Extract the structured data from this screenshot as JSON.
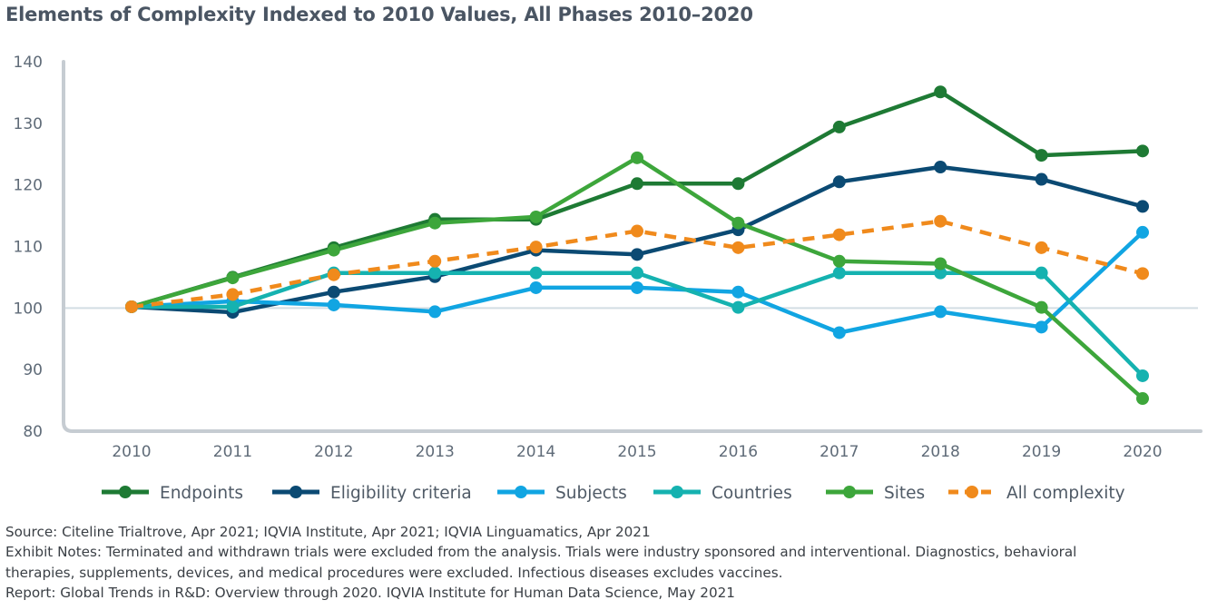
{
  "title": "Elements of Complexity Indexed to 2010 Values, All Phases 2010–2020",
  "footer": {
    "source": "Source: Citeline Trialtrove, Apr 2021; IQVIA Institute, Apr 2021; IQVIA Linguamatics, Apr 2021",
    "notes_line1": "Exhibit Notes: Terminated and withdrawn trials were excluded from the analysis. Trials were industry sponsored and interventional. Diagnostics, behavioral",
    "notes_line2": "therapies, supplements, devices, and medical procedures were excluded. Infectious diseases excludes vaccines.",
    "report": "Report: Global Trends in R&D: Overview through 2020. IQVIA Institute for Human Data Science, May 2021"
  },
  "chart_data": {
    "type": "line",
    "title": "Elements of Complexity Indexed to 2010 Values, All Phases 2010–2020",
    "xlabel": "",
    "ylabel": "",
    "x": [
      "2010",
      "2011",
      "2012",
      "2013",
      "2014",
      "2015",
      "2016",
      "2017",
      "2018",
      "2019",
      "2020"
    ],
    "ylim": [
      80,
      140
    ],
    "yticks": [
      80,
      90,
      100,
      110,
      120,
      130,
      140
    ],
    "reference_line": 100,
    "legend_position": "bottom",
    "series": [
      {
        "name": "Endpoints",
        "color": "#1e7a34",
        "dashed": false,
        "values": [
          100.2,
          105.0,
          109.8,
          114.4,
          114.4,
          120.2,
          120.2,
          129.4,
          135.1,
          124.8,
          125.5
        ]
      },
      {
        "name": "Eligibility criteria",
        "color": "#0b4a73",
        "dashed": false,
        "values": [
          100.2,
          99.3,
          102.6,
          105.1,
          109.4,
          108.7,
          112.7,
          120.5,
          122.9,
          120.9,
          116.5
        ]
      },
      {
        "name": "Subjects",
        "color": "#11a5e2",
        "dashed": false,
        "values": [
          100.2,
          101.1,
          100.5,
          99.4,
          103.3,
          103.3,
          102.6,
          96.0,
          99.4,
          96.9,
          112.3
        ]
      },
      {
        "name": "Countries",
        "color": "#15b2b0",
        "dashed": false,
        "values": [
          100.2,
          100.2,
          105.7,
          105.7,
          105.7,
          105.7,
          100.1,
          105.7,
          105.7,
          105.7,
          89.0
        ]
      },
      {
        "name": "Sites",
        "color": "#3da63b",
        "dashed": false,
        "values": [
          100.2,
          104.9,
          109.4,
          113.8,
          114.8,
          124.4,
          113.8,
          107.6,
          107.2,
          100.1,
          85.3
        ]
      },
      {
        "name": "All complexity",
        "color": "#f08a1c",
        "dashed": true,
        "values": [
          100.2,
          102.2,
          105.4,
          107.6,
          109.9,
          112.5,
          109.8,
          111.9,
          114.1,
          109.8,
          105.6
        ]
      }
    ]
  }
}
